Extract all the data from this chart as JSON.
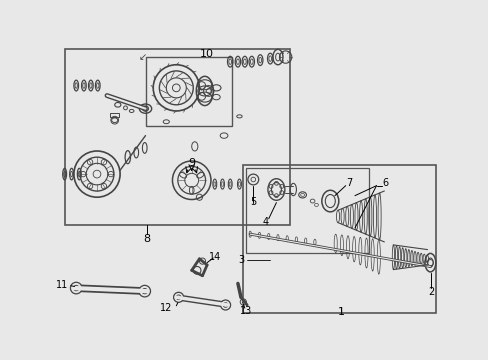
{
  "bg_color": "#e8e8e8",
  "border_color": "#555555",
  "part_color": "#444444",
  "label_color": "#000000"
}
